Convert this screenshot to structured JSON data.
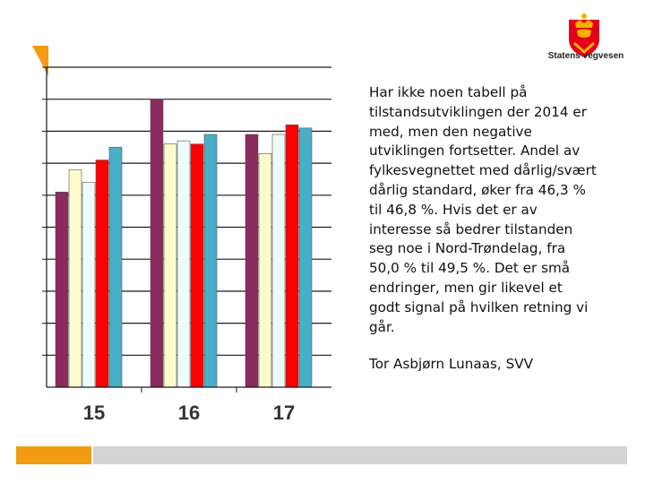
{
  "chart_data": {
    "type": "bar",
    "categories": [
      "15",
      "16",
      "17"
    ],
    "ylim": [
      0,
      10
    ],
    "gridlines": [
      0,
      1,
      2,
      3,
      4,
      5,
      6,
      7,
      8,
      9,
      10
    ],
    "grid": true,
    "legend": false,
    "series": [
      {
        "color": "#8b2a5c",
        "values": [
          6.1,
          9.0,
          7.9
        ]
      },
      {
        "color": "#fdfbcb",
        "values": [
          6.8,
          7.6,
          7.3
        ]
      },
      {
        "color": "#eefbfb",
        "values": [
          6.4,
          7.7,
          7.9
        ]
      },
      {
        "color": "#ff0000",
        "values": [
          7.1,
          7.6,
          8.2
        ]
      },
      {
        "color": "#4aaec8",
        "values": [
          7.5,
          7.9,
          8.1
        ]
      }
    ]
  },
  "logo": {
    "text": "Statens vegvesen",
    "primary_color": "#e3001b",
    "secondary_color": "#f5b200"
  },
  "text": {
    "paragraph": "Har ikke noen tabell på\ntilstandsutviklingen der 2014 er\nmed, men den negative\nutviklingen fortsetter. Andel av\nfylkesvegnettet med dårlig/svært\ndårlig standard, øker fra 46,3 %\ntil 46,8 %. Hvis det er av\ninteresse så bedrer tilstanden\nseg noe i Nord-Trøndelag, fra\n50,0 % til 49,5 %. Det er små\nendringer, men gir likevel et\ngodt signal på hvilken retning vi\ngår.",
    "author": "Tor Asbjørn Lunaas, SVV"
  },
  "colors": {
    "accent_orange": "#f39c12",
    "footer_gray": "#d4d4d4"
  }
}
